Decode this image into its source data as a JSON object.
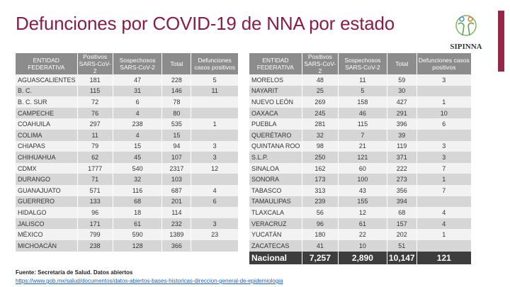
{
  "title": "Defunciones por COVID-19 de NNA por estado",
  "logo": {
    "name": "SIPINNA"
  },
  "colors": {
    "title": "#8a1e41",
    "accent_bar": "#9d2449",
    "header": "#8c8c8c",
    "total_row": "#3d3d3d"
  },
  "headers": [
    "ENTIDAD FEDERATIVA",
    "Positivos SARS-CoV-2",
    "Sospechosos SARS-CoV-2",
    "Total",
    "Defunciones casos positivos"
  ],
  "left_rows": [
    [
      "AGUASCALIENTES",
      "181",
      "47",
      "228",
      "5"
    ],
    [
      "B. C.",
      "115",
      "31",
      "146",
      "11"
    ],
    [
      "B. C. SUR",
      "72",
      "6",
      "78",
      ""
    ],
    [
      "CAMPECHE",
      "76",
      "4",
      "80",
      ""
    ],
    [
      "COAHUILA",
      "297",
      "238",
      "535",
      "1"
    ],
    [
      "COLIMA",
      "11",
      "4",
      "15",
      ""
    ],
    [
      "CHIAPAS",
      "79",
      "15",
      "94",
      "3"
    ],
    [
      "CHIHUAHUA",
      "62",
      "45",
      "107",
      "3"
    ],
    [
      "CDMX",
      "1777",
      "540",
      "2317",
      "12"
    ],
    [
      "DURANGO",
      "71",
      "32",
      "103",
      ""
    ],
    [
      "GUANAJUATO",
      "571",
      "116",
      "687",
      "4"
    ],
    [
      "GUERRERO",
      "133",
      "68",
      "201",
      "6"
    ],
    [
      "HIDALGO",
      "96",
      "18",
      "114",
      ""
    ],
    [
      "JALISCO",
      "171",
      "61",
      "232",
      "3"
    ],
    [
      "MÉXICO",
      "799",
      "590",
      "1389",
      "23"
    ],
    [
      "MICHOACÁN",
      "238",
      "128",
      "366",
      ""
    ]
  ],
  "right_rows": [
    [
      "MORELOS",
      "48",
      "11",
      "59",
      "3"
    ],
    [
      "NAYARIT",
      "25",
      "5",
      "30",
      ""
    ],
    [
      "NUEVO LEÓN",
      "269",
      "158",
      "427",
      "1"
    ],
    [
      "OAXACA",
      "245",
      "46",
      "291",
      "10"
    ],
    [
      "PUEBLA",
      "281",
      "115",
      "396",
      "6"
    ],
    [
      "QUERÉTARO",
      "32",
      "7",
      "39",
      ""
    ],
    [
      "QUINTANA ROO",
      "98",
      "21",
      "119",
      "3"
    ],
    [
      "S.L.P.",
      "250",
      "121",
      "371",
      "3"
    ],
    [
      "SINALOA",
      "162",
      "60",
      "222",
      "7"
    ],
    [
      "SONORA",
      "173",
      "100",
      "273",
      "1"
    ],
    [
      "TABASCO",
      "313",
      "43",
      "356",
      "7"
    ],
    [
      "TAMAULIPAS",
      "239",
      "155",
      "394",
      ""
    ],
    [
      "TLAXCALA",
      "56",
      "12",
      "68",
      "4"
    ],
    [
      "VERACRUZ",
      "96",
      "61",
      "157",
      "4"
    ],
    [
      "YUCATÁN",
      "180",
      "22",
      "202",
      "1"
    ],
    [
      "ZACATECAS",
      "41",
      "10",
      "51",
      ""
    ]
  ],
  "national": [
    "Nacional",
    "7,257",
    "2,890",
    "10,147",
    "121"
  ],
  "footer": {
    "source": "Fuente: Secretaría de Salud. Datos abiertos",
    "link": "https://www.gob.mx/salud/documentos/datos-abiertos-bases-historicas-direccion-general-de-epidemiologia"
  }
}
